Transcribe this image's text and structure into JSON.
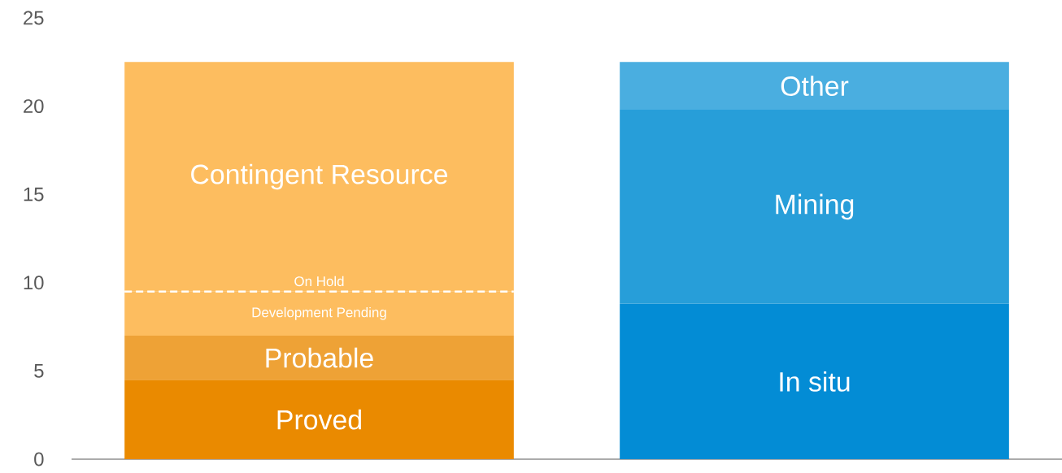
{
  "chart_data": {
    "type": "bar",
    "stacked": true,
    "categories": [
      null,
      null
    ],
    "series": [
      {
        "name": "Proved",
        "color": "#ea8a00",
        "values": [
          4.5,
          null
        ]
      },
      {
        "name": "Probable",
        "color": "#eea236",
        "values": [
          2.5,
          null
        ]
      },
      {
        "color": "#fdbd5f",
        "values": [
          2.5,
          null
        ]
      },
      {
        "name": "Contingent Resource",
        "color": "#fdbd5f",
        "values": [
          13,
          null
        ],
        "line_style": "dashed"
      },
      {
        "name": "In situ",
        "color": "#038cd5",
        "values": [
          null,
          8.8
        ]
      },
      {
        "name": "Mining",
        "color": "#279ed9",
        "values": [
          null,
          11
        ]
      },
      {
        "name": "Other",
        "color": "#4aaee0",
        "values": [
          null,
          2.7
        ]
      }
    ],
    "annotations": [
      "Development Pending",
      "On Hold"
    ],
    "ylim": [
      0,
      25
    ],
    "yticks": [
      0,
      5,
      10,
      15,
      20,
      25
    ],
    "grid": false
  }
}
